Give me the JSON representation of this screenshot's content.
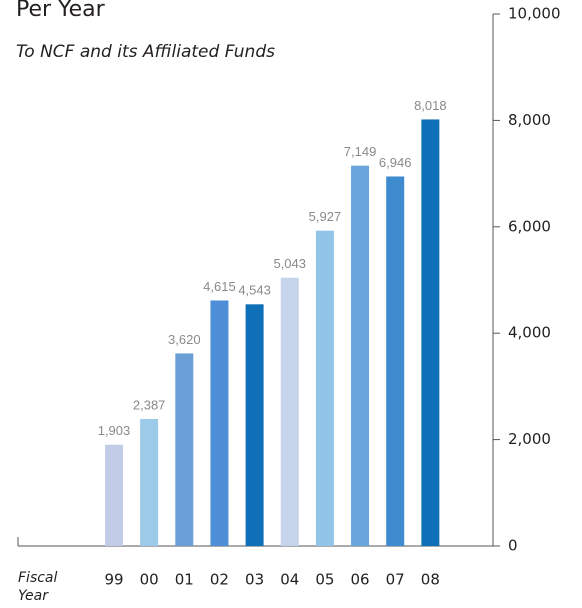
{
  "chart_data": {
    "type": "bar",
    "title": "Per Year",
    "subtitle": "To NCF and its Affiliated Funds",
    "x_label": "Fiscal Year",
    "categories": [
      "99",
      "00",
      "01",
      "02",
      "03",
      "04",
      "05",
      "06",
      "07",
      "08"
    ],
    "values": [
      1903,
      2387,
      3620,
      4615,
      4543,
      5043,
      5927,
      7149,
      6946,
      8018
    ],
    "value_labels": [
      "1,903",
      "2,387",
      "3,620",
      "4,615",
      "4,543",
      "5,043",
      "5,927",
      "7,149",
      "6,946",
      "8,018"
    ],
    "colors": [
      "#c3cce6",
      "#9ccbea",
      "#6b9fd8",
      "#4d8ed6",
      "#0f6fb7",
      "#c6d4eb",
      "#92c4ea",
      "#6aa6dc",
      "#3e8bd0",
      "#0f6fb7"
    ],
    "ylim": [
      0,
      10000
    ],
    "yticks": [
      0,
      {
        "value": 2000,
        "label": "2,000"
      },
      {
        "value": 4000,
        "label": "4,000"
      },
      {
        "value": 6000,
        "label": "6,000"
      },
      {
        "value": 8000,
        "label": "8,000"
      },
      {
        "value": 10000,
        "label": "10,000"
      }
    ],
    "y_axis_side": "right"
  }
}
